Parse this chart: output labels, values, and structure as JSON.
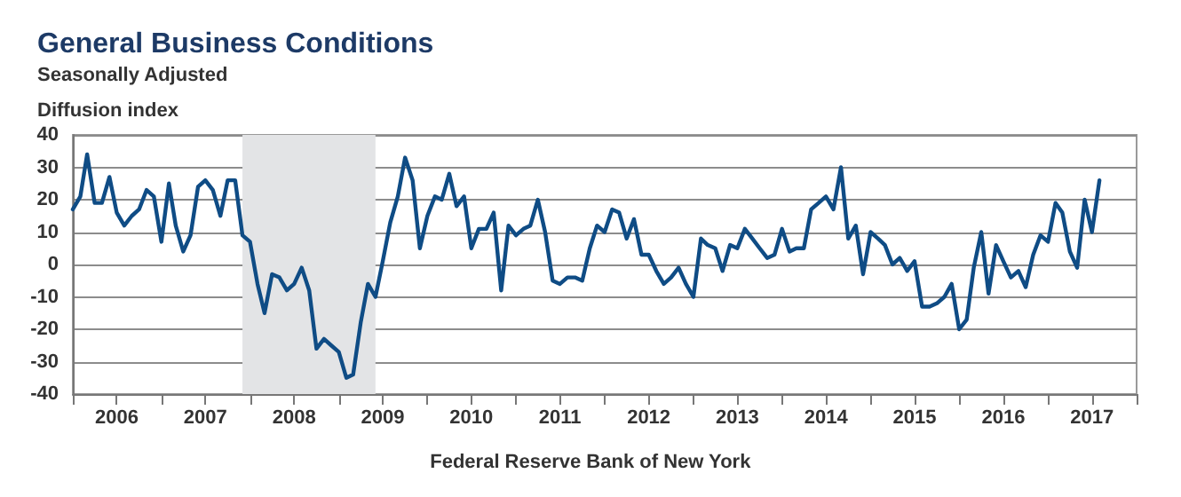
{
  "chart_data": {
    "type": "line",
    "title": "General Business Conditions",
    "subtitle": "Seasonally Adjusted",
    "ylabel": "Diffusion index",
    "annotations": [
      "Federal Reserve Bank of New York"
    ],
    "x": [
      "2006-01",
      "2006-02",
      "2006-03",
      "2006-04",
      "2006-05",
      "2006-06",
      "2006-07",
      "2006-08",
      "2006-09",
      "2006-10",
      "2006-11",
      "2006-12",
      "2007-01",
      "2007-02",
      "2007-03",
      "2007-04",
      "2007-05",
      "2007-06",
      "2007-07",
      "2007-08",
      "2007-09",
      "2007-10",
      "2007-11",
      "2007-12",
      "2008-01",
      "2008-02",
      "2008-03",
      "2008-04",
      "2008-05",
      "2008-06",
      "2008-07",
      "2008-08",
      "2008-09",
      "2008-10",
      "2008-11",
      "2008-12",
      "2009-01",
      "2009-02",
      "2009-03",
      "2009-04",
      "2009-05",
      "2009-06",
      "2009-07",
      "2009-08",
      "2009-09",
      "2009-10",
      "2009-11",
      "2009-12",
      "2010-01",
      "2010-02",
      "2010-03",
      "2010-04",
      "2010-05",
      "2010-06",
      "2010-07",
      "2010-08",
      "2010-09",
      "2010-10",
      "2010-11",
      "2010-12",
      "2011-01",
      "2011-02",
      "2011-03",
      "2011-04",
      "2011-05",
      "2011-06",
      "2011-07",
      "2011-08",
      "2011-09",
      "2011-10",
      "2011-11",
      "2011-12",
      "2012-01",
      "2012-02",
      "2012-03",
      "2012-04",
      "2012-05",
      "2012-06",
      "2012-07",
      "2012-08",
      "2012-09",
      "2012-10",
      "2012-11",
      "2012-12",
      "2013-01",
      "2013-02",
      "2013-03",
      "2013-04",
      "2013-05",
      "2013-06",
      "2013-07",
      "2013-08",
      "2013-09",
      "2013-10",
      "2013-11",
      "2013-12",
      "2014-01",
      "2014-02",
      "2014-03",
      "2014-04",
      "2014-05",
      "2014-06",
      "2014-07",
      "2014-08",
      "2014-09",
      "2014-10",
      "2014-11",
      "2014-12",
      "2015-01",
      "2015-02",
      "2015-03",
      "2015-04",
      "2015-05",
      "2015-06",
      "2015-07",
      "2015-08",
      "2015-09",
      "2015-10",
      "2015-11",
      "2015-12",
      "2016-01",
      "2016-02",
      "2016-03",
      "2016-04",
      "2016-05",
      "2016-06",
      "2016-07",
      "2016-08",
      "2016-09",
      "2016-10",
      "2016-11",
      "2016-12",
      "2017-01",
      "2017-02",
      "2017-03",
      "2017-04",
      "2017-05",
      "2017-06",
      "2017-07",
      "2017-08"
    ],
    "series": [
      {
        "color": "#0f4c85",
        "values": [
          17,
          21,
          34,
          19,
          19,
          27,
          16,
          12,
          15,
          17,
          23,
          21,
          7,
          25,
          12,
          4,
          9,
          24,
          26,
          23,
          15,
          26,
          26,
          9,
          7,
          -6,
          -15,
          -3,
          -4,
          -8,
          -6,
          -1,
          -8,
          -26,
          -23,
          -25,
          -27,
          -35,
          -34,
          -18,
          -6,
          -10,
          1,
          13,
          21,
          33,
          26,
          5,
          15,
          21,
          20,
          28,
          18,
          21,
          5,
          11,
          11,
          16,
          -8,
          12,
          9,
          11,
          12,
          20,
          10,
          -5,
          -6,
          -4,
          -4,
          -5,
          5,
          12,
          10,
          17,
          16,
          8,
          14,
          3,
          3,
          -2,
          -6,
          -4,
          -1,
          -6,
          -10,
          8,
          6,
          5,
          -2,
          6,
          5,
          11,
          8,
          5,
          2,
          3,
          11,
          4,
          5,
          5,
          17,
          19,
          21,
          17,
          30,
          8,
          12,
          -3,
          10,
          8,
          6,
          0,
          2,
          -2,
          1,
          -13,
          -13,
          -12,
          -10,
          -6,
          -20,
          -17,
          -1,
          10,
          -9,
          6,
          1,
          -4,
          -2,
          -7,
          3,
          9,
          7,
          19,
          16,
          4,
          -1,
          20,
          10,
          26
        ]
      }
    ],
    "xlim": [
      "2006-01",
      "2018-01"
    ],
    "xticks": [
      {
        "value": "2006-01",
        "label": null
      },
      {
        "value": "2006-07",
        "label": "2006"
      },
      {
        "value": "2007-01",
        "label": null
      },
      {
        "value": "2007-07",
        "label": "2007"
      },
      {
        "value": "2008-01",
        "label": null
      },
      {
        "value": "2008-07",
        "label": "2008"
      },
      {
        "value": "2009-01",
        "label": null
      },
      {
        "value": "2009-07",
        "label": "2009"
      },
      {
        "value": "2010-01",
        "label": null
      },
      {
        "value": "2010-07",
        "label": "2010"
      },
      {
        "value": "2011-01",
        "label": null
      },
      {
        "value": "2011-07",
        "label": "2011"
      },
      {
        "value": "2012-01",
        "label": null
      },
      {
        "value": "2012-07",
        "label": "2012"
      },
      {
        "value": "2013-01",
        "label": null
      },
      {
        "value": "2013-07",
        "label": "2013"
      },
      {
        "value": "2014-01",
        "label": null
      },
      {
        "value": "2014-07",
        "label": "2014"
      },
      {
        "value": "2015-01",
        "label": null
      },
      {
        "value": "2015-07",
        "label": "2015"
      },
      {
        "value": "2016-01",
        "label": null
      },
      {
        "value": "2016-07",
        "label": "2016"
      },
      {
        "value": "2017-01",
        "label": null
      },
      {
        "value": "2017-07",
        "label": "2017"
      },
      {
        "value": "2018-01",
        "label": null
      }
    ],
    "ylim": [
      -40,
      40
    ],
    "yticks": [
      -40,
      -30,
      -20,
      -10,
      0,
      10,
      20,
      30,
      40
    ],
    "bands": [
      {
        "axis": "x",
        "from": "2007-12",
        "to": "2009-06",
        "color": "#e3e4e6"
      }
    ],
    "grid": "y",
    "marker": "none",
    "line_style": "solid"
  }
}
